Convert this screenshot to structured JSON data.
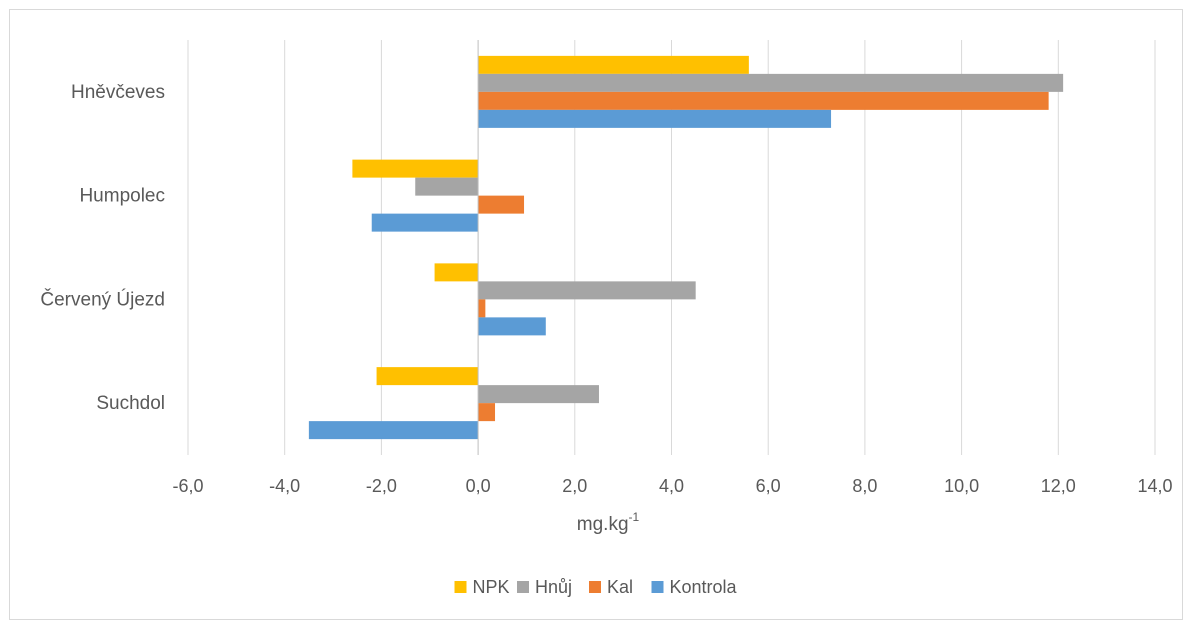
{
  "chart_data": {
    "type": "bar",
    "orientation": "horizontal",
    "categories": [
      "Hněvčeves",
      "Humpolec",
      "Červený Újezd",
      "Suchdol"
    ],
    "series": [
      {
        "name": "NPK",
        "color": "#FFC000",
        "values": [
          5.6,
          -2.6,
          -0.9,
          -2.1
        ]
      },
      {
        "name": "Hnůj",
        "color": "#A5A5A5",
        "values": [
          12.1,
          -1.3,
          4.5,
          2.5
        ]
      },
      {
        "name": "Kal",
        "color": "#ED7D31",
        "values": [
          11.8,
          0.95,
          0.15,
          0.35
        ]
      },
      {
        "name": "Kontrola",
        "color": "#5B9BD5",
        "values": [
          7.3,
          -2.2,
          1.4,
          -3.5
        ]
      }
    ],
    "xlim": [
      -6,
      14
    ],
    "xticks": [
      "-6,0",
      "-4,0",
      "-2,0",
      "0,0",
      "2,0",
      "4,0",
      "6,0",
      "8,0",
      "10,0",
      "12,0",
      "14,0"
    ],
    "xlabel_base": "mg.kg",
    "xlabel_sup": "-1",
    "grid": "vertical",
    "legend": "bottom",
    "legend_order": [
      "NPK",
      "Hnůj",
      "Kal",
      "Kontrola"
    ]
  }
}
